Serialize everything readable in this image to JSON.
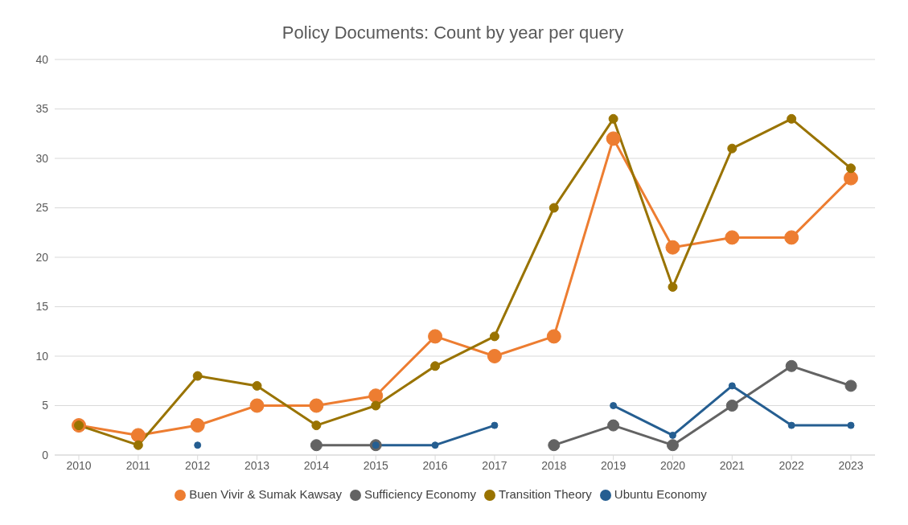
{
  "chart_data": {
    "type": "line",
    "title": "Policy Documents: Count by year per query",
    "categories": [
      "2010",
      "2011",
      "2012",
      "2013",
      "2014",
      "2015",
      "2016",
      "2017",
      "2018",
      "2019",
      "2020",
      "2021",
      "2022",
      "2023"
    ],
    "series": [
      {
        "name": "Buen Vivir & Sumak Kawsay",
        "color": "#ed7d31",
        "values": [
          3,
          2,
          3,
          5,
          5,
          6,
          12,
          10,
          12,
          32,
          21,
          22,
          22,
          28
        ]
      },
      {
        "name": "Sufficiency Economy",
        "color": "#636363",
        "values": [
          null,
          null,
          null,
          null,
          1,
          1,
          null,
          null,
          1,
          3,
          1,
          5,
          9,
          7
        ]
      },
      {
        "name": "Transition Theory",
        "color": "#997300",
        "values": [
          3,
          1,
          8,
          7,
          3,
          5,
          9,
          12,
          25,
          34,
          17,
          31,
          34,
          29
        ]
      },
      {
        "name": "Ubuntu Economy",
        "color": "#255e91",
        "values": [
          null,
          null,
          1,
          null,
          null,
          1,
          1,
          3,
          null,
          5,
          2,
          7,
          3,
          3
        ]
      }
    ],
    "ylim": [
      0,
      40
    ],
    "yticks": [
      0,
      5,
      10,
      15,
      20,
      25,
      30,
      35,
      40
    ],
    "grid": "y",
    "legend": "bottom",
    "marker": "circle",
    "line_style": "solid"
  }
}
